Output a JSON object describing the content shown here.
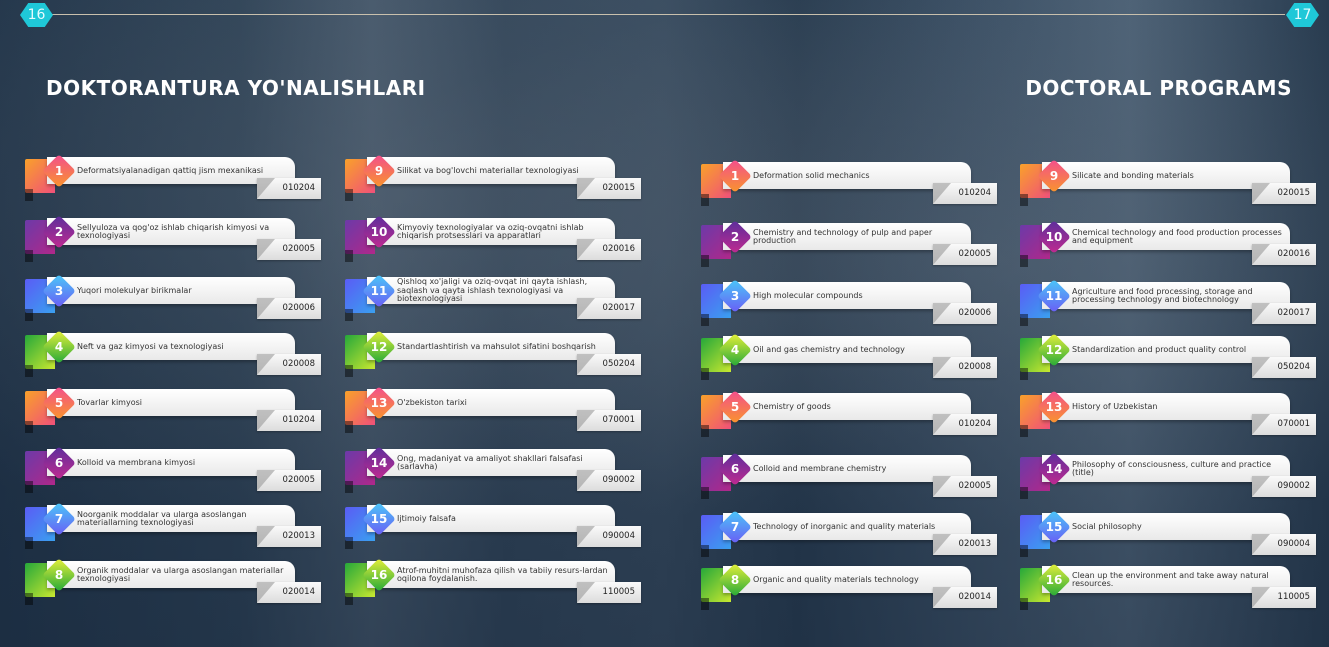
{
  "pages": {
    "left": "16",
    "right": "17"
  },
  "titles": {
    "left": "DOKTORANTURA YO'NALISHLARI",
    "right": "DOCTORAL PROGRAMS"
  },
  "colors": {
    "orange": "#f7892a",
    "purple": "#8b2aa6",
    "blue": "#4a6cf7",
    "green": "#3fb83a",
    "hex": "#1fc8d8"
  },
  "uz": [
    {
      "n": "1",
      "t": "Deformatsiyalanadigan qattiq jism mexanikasi",
      "c": "010204"
    },
    {
      "n": "2",
      "t": "Sellyuloza  va qog'oz ishlab chiqarish kimyosi va texnologiyasi",
      "c": "020005"
    },
    {
      "n": "3",
      "t": "Yuqori molekulyar birikmalar",
      "c": "020006"
    },
    {
      "n": "4",
      "t": "Neft va gaz kimyosi va texnologiyasi",
      "c": "020008"
    },
    {
      "n": "5",
      "t": "Tovarlar kimyosi",
      "c": "010204"
    },
    {
      "n": "6",
      "t": "Kolloid va membrana kimyosi",
      "c": "020005"
    },
    {
      "n": "7",
      "t": "Noorganik moddalar va ularga asoslangan materiallarning texnologiyasi",
      "c": "020013"
    },
    {
      "n": "8",
      "t": "Organik moddalar va ularga asoslangan materiallar texnologiyasi",
      "c": "020014"
    },
    {
      "n": "9",
      "t": "Silikat va bog'lovchi materiallar texnologiyasi",
      "c": "020015"
    },
    {
      "n": "10",
      "t": "Kimyoviy texnologiyalar va oziq-ovqatni ishlab chiqarish protsesslari va apparatlari",
      "c": "020016"
    },
    {
      "n": "11",
      "t": "Qishloq xo'jaligi va oziq-ovqat ini qayta ishlash, saqlash va qayta ishlash texnologiyasi va biotexnologiyasi",
      "c": "020017"
    },
    {
      "n": "12",
      "t": "Standartlashtirish va mahsulot sifatini boshqarish",
      "c": "050204"
    },
    {
      "n": "13",
      "t": "O'zbekiston tarixi",
      "c": "070001"
    },
    {
      "n": "14",
      "t": "Ong, madaniyat va amaliyot shakllari falsafasi (sarlavha)",
      "c": "090002"
    },
    {
      "n": "15",
      "t": "Ijtimoiy falsafa",
      "c": "090004"
    },
    {
      "n": "16",
      "t": "Atrof-muhitni muhofaza qilish va tabiiy resurs-lardan oqilona foydalanish.",
      "c": "110005"
    }
  ],
  "en": [
    {
      "n": "1",
      "t": "Deformation solid mechanics",
      "c": "010204"
    },
    {
      "n": "2",
      "t": "Chemistry and technology of pulp and paper production",
      "c": "020005"
    },
    {
      "n": "3",
      "t": "High molecular compounds",
      "c": "020006"
    },
    {
      "n": "4",
      "t": "Oil and gas chemistry and technology",
      "c": "020008"
    },
    {
      "n": "5",
      "t": "Chemistry of goods",
      "c": "010204"
    },
    {
      "n": "6",
      "t": "Colloid and membrane chemistry",
      "c": "020005"
    },
    {
      "n": "7",
      "t": "Technology of inorganic and quality materials",
      "c": "020013"
    },
    {
      "n": "8",
      "t": "Organic and quality materials technology",
      "c": "020014"
    },
    {
      "n": "9",
      "t": "Silicate and bonding materials",
      "c": "020015"
    },
    {
      "n": "10",
      "t": "Chemical technology and food production processes and equipment",
      "c": "020016"
    },
    {
      "n": "11",
      "t": "Agriculture and food processing, storage and processing technology and biotechnology",
      "c": "020017"
    },
    {
      "n": "12",
      "t": "Standardization and product quality control",
      "c": "050204"
    },
    {
      "n": "13",
      "t": "History of Uzbekistan",
      "c": "070001"
    },
    {
      "n": "14",
      "t": "Philosophy of consciousness, culture and practice (title)",
      "c": "090002"
    },
    {
      "n": "15",
      "t": "Social philosophy",
      "c": "090004"
    },
    {
      "n": "16",
      "t": "Clean up the environment and take away natural resources.",
      "c": "110005"
    }
  ]
}
